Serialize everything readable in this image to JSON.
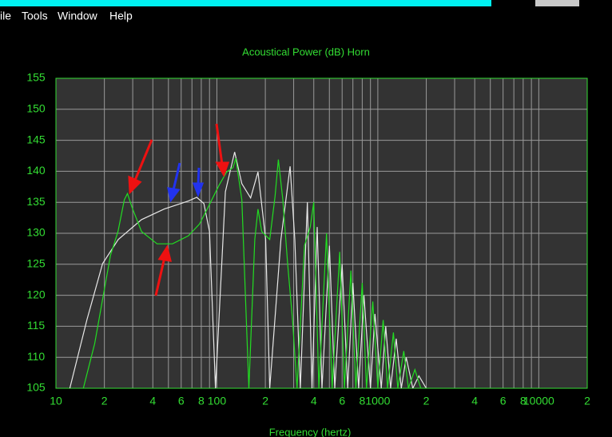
{
  "menu": [
    "ile",
    "Tools",
    "Window",
    "Help"
  ],
  "chart_data": {
    "type": "line",
    "title": "Acoustical Power (dB)   Horn",
    "x_label": "Frequency (hertz)",
    "xscale": "log",
    "grid": true,
    "axis_color": "#33dd33",
    "grid_color": "#9a9a9a",
    "background": "#333333",
    "xlim": [
      10,
      20000
    ],
    "xticks": [
      10,
      {
        "value": 20,
        "label": "2"
      },
      {
        "value": 40,
        "label": "4"
      },
      {
        "value": 60,
        "label": "6"
      },
      {
        "value": 80,
        "label": "8"
      },
      100,
      {
        "value": 200,
        "label": "2"
      },
      {
        "value": 400,
        "label": "4"
      },
      {
        "value": 600,
        "label": "6"
      },
      {
        "value": 800,
        "label": "8"
      },
      1000,
      {
        "value": 2000,
        "label": "2"
      },
      {
        "value": 4000,
        "label": "4"
      },
      {
        "value": 6000,
        "label": "6"
      },
      {
        "value": 8000,
        "label": "8"
      },
      10000,
      {
        "value": 20000,
        "label": "2"
      }
    ],
    "xgrid_minor": [
      30,
      50,
      70,
      90,
      300,
      500,
      700,
      900,
      3000,
      5000,
      7000,
      9000
    ],
    "ylim": [
      105,
      155
    ],
    "yticks": [
      105,
      110,
      115,
      120,
      125,
      130,
      135,
      140,
      145,
      150,
      155
    ],
    "series": [
      {
        "color": "#e8e8e8",
        "x": [
          12.2,
          15.6,
          19.5,
          24.4,
          34,
          47,
          66.5,
          75,
          83,
          90,
          98,
          113,
          129,
          143,
          162,
          180,
          201,
          213,
          250,
          285,
          305,
          330,
          365,
          390,
          420,
          450,
          500,
          540,
          600,
          650,
          700,
          760,
          820,
          900,
          960,
          1050,
          1120,
          1200,
          1300,
          1400,
          1500,
          1650,
          1800,
          2000
        ],
        "values": [
          105,
          116.1,
          125.1,
          129,
          132.2,
          133.9,
          135.2,
          135.8,
          134.8,
          130.3,
          105,
          136.7,
          143.1,
          138,
          135.7,
          139.9,
          129,
          105,
          129,
          140.8,
          129,
          105,
          135,
          105,
          131,
          105,
          128,
          105,
          125,
          105,
          122,
          105,
          120,
          105,
          117,
          105,
          115,
          105,
          113,
          105,
          110,
          105,
          107,
          105
        ]
      },
      {
        "color": "#22dd22",
        "x": [
          14.8,
          17.4,
          21.8,
          24.3,
          26.6,
          27.8,
          29.8,
          34,
          42.5,
          53,
          66.5,
          78,
          87,
          103,
          115,
          126,
          131,
          143,
          158,
          172,
          180,
          190,
          213,
          230,
          241,
          257,
          275,
          295,
          315,
          350,
          380,
          400,
          430,
          480,
          520,
          580,
          620,
          680,
          730,
          800,
          850,
          930,
          1000,
          1080,
          1150,
          1250,
          1330,
          1450,
          1550,
          1700,
          1850,
          2000
        ],
        "values": [
          105,
          112.2,
          126.4,
          130.3,
          135.4,
          136.4,
          134.1,
          130.3,
          128.3,
          128.3,
          129.6,
          131.5,
          133.9,
          137.7,
          139.9,
          140.6,
          142.1,
          135.4,
          105,
          129,
          133.9,
          130.3,
          129,
          136,
          141.9,
          135.4,
          125.1,
          116.1,
          105,
          128,
          131,
          135,
          105,
          130,
          105,
          127,
          105,
          124,
          105,
          122,
          105,
          119,
          105,
          116,
          105,
          114,
          105,
          111,
          105,
          108,
          105,
          105
        ]
      }
    ]
  }
}
